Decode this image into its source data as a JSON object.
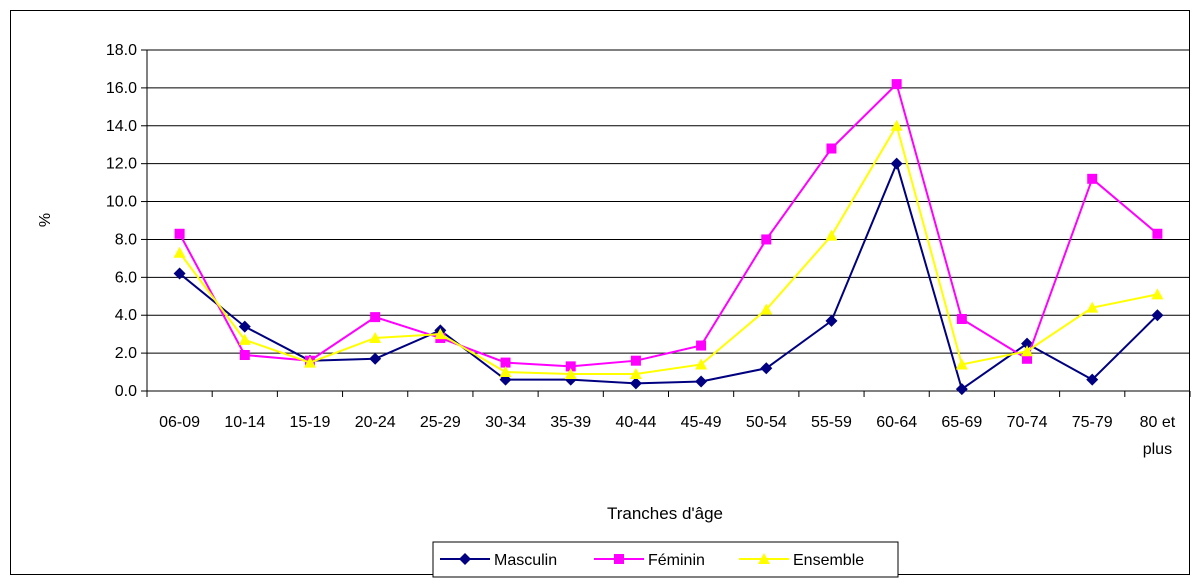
{
  "chart_data": {
    "type": "line",
    "title": "",
    "xlabel": "Tranches d'âge",
    "ylabel": "%",
    "ylim": [
      0,
      18
    ],
    "y_tick_step": 2,
    "y_tick_labels": [
      "0.0",
      "2.0",
      "4.0",
      "6.0",
      "8.0",
      "10.0",
      "12.0",
      "14.0",
      "16.0",
      "18.0"
    ],
    "grid": "horizontal",
    "legend_position": "bottom",
    "categories": [
      "06-09",
      "10-14",
      "15-19",
      "20-24",
      "25-29",
      "30-34",
      "35-39",
      "40-44",
      "45-49",
      "50-54",
      "55-59",
      "60-64",
      "65-69",
      "70-74",
      "75-79",
      "80 et plus"
    ],
    "series": [
      {
        "name": "Masculin",
        "color": "#000080",
        "marker": "diamond",
        "values": [
          6.2,
          3.4,
          1.6,
          1.7,
          3.2,
          0.6,
          0.6,
          0.4,
          0.5,
          1.2,
          3.7,
          12.0,
          0.1,
          2.5,
          0.6,
          4.0
        ]
      },
      {
        "name": "Féminin",
        "color": "#FF00FF",
        "marker": "square",
        "values": [
          8.3,
          1.9,
          1.6,
          3.9,
          2.8,
          1.5,
          1.3,
          1.6,
          2.4,
          8.0,
          12.8,
          16.2,
          3.8,
          1.7,
          11.2,
          8.3
        ]
      },
      {
        "name": "Ensemble",
        "color": "#FFFF00",
        "marker": "triangle",
        "values": [
          7.3,
          2.7,
          1.5,
          2.8,
          3.0,
          1.0,
          0.9,
          0.9,
          1.4,
          4.3,
          8.2,
          14.0,
          1.4,
          2.1,
          4.4,
          5.1
        ]
      }
    ]
  }
}
